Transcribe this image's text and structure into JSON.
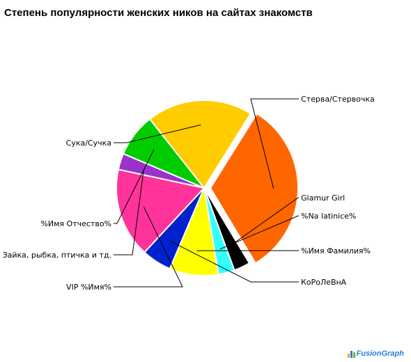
{
  "chart_data": {
    "type": "pie",
    "title": "Степень популярности женских ников на сайтах знакомств",
    "slices": [
      {
        "label": "Стерва/Стервочка",
        "value": 32.5,
        "color": "#ff6600"
      },
      {
        "label": "Glamur Girl",
        "value": 3.0,
        "color": "#000000"
      },
      {
        "label": "%Na latinice%",
        "value": 3.0,
        "color": "#33ffff"
      },
      {
        "label": "%Имя Фамилия%",
        "value": 9.0,
        "color": "#ffff00"
      },
      {
        "label": "КоРоЛеВнА",
        "value": 5.5,
        "color": "#0022cc"
      },
      {
        "label": "VIP %Имя%",
        "value": 16.5,
        "color": "#ff3399"
      },
      {
        "label": "Зайка, рыбка, птичка и тд.",
        "value": 3.0,
        "color": "#9933cc"
      },
      {
        "label": "%Имя Отчество%",
        "value": 8.0,
        "color": "#00cc00"
      },
      {
        "label": "Сука/Сучка",
        "value": 19.5,
        "color": "#ffcc00"
      }
    ]
  },
  "brand": {
    "logo_text": "FusionGraph"
  }
}
